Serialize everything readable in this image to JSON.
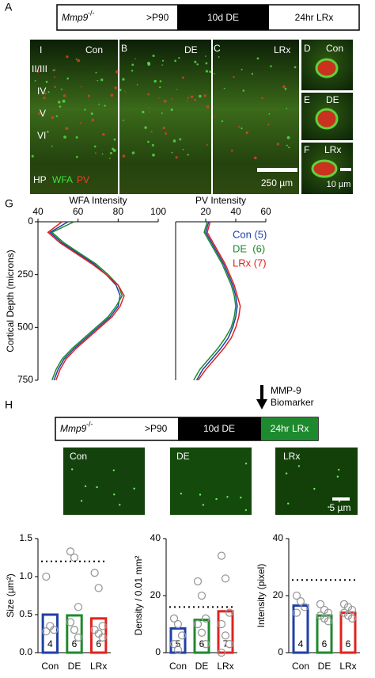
{
  "panel_a": {
    "label": "A",
    "gene": "Mmp9",
    "genotype": "-/-",
    "stages": [
      ">P90",
      "10d DE",
      "24hr LRx"
    ]
  },
  "micrographs": {
    "labels": [
      "B",
      "C",
      "D",
      "E",
      "F"
    ],
    "conditions": [
      "Con",
      "DE",
      "LRx"
    ],
    "layers": [
      "I",
      "II/III",
      "IV",
      "V",
      "VI",
      "HP"
    ],
    "stains": [
      "WFA",
      "PV"
    ],
    "scale_bars": [
      "250 µm",
      "10 µm"
    ]
  },
  "panel_g": {
    "label": "G"
  },
  "panel_h": {
    "label": "H",
    "marker": "MMP-9",
    "marker_note": "Biomarker",
    "gene": "Mmp9",
    "genotype": "-/-",
    "stages": [
      ">P90",
      "10d DE",
      "24hr LRx"
    ],
    "conditions": [
      "Con",
      "DE",
      "LRx"
    ],
    "scale_bar": "5 µm"
  },
  "chart_data": [
    {
      "type": "line",
      "title": "WFA Intensity",
      "ylabel": "Cortical Depth (microns)",
      "xlim": [
        40,
        100
      ],
      "xticks": [
        40,
        60,
        80,
        100
      ],
      "ylim": [
        750,
        0
      ],
      "yticks": [
        0,
        250,
        500,
        750
      ],
      "y": [
        0,
        50,
        100,
        150,
        200,
        250,
        300,
        350,
        400,
        450,
        500,
        550,
        600,
        650,
        700,
        750
      ],
      "series": [
        {
          "color": "#1f3fa8",
          "values": [
            55,
            46,
            52,
            60,
            68,
            74,
            79,
            81,
            80,
            76,
            70,
            64,
            58,
            53,
            50,
            48
          ]
        },
        {
          "color": "#1e8a2e",
          "values": [
            58,
            47,
            53,
            61,
            69,
            75,
            80,
            82,
            79,
            75,
            69,
            63,
            57,
            52,
            49,
            47
          ]
        },
        {
          "color": "#e0231e",
          "values": [
            52,
            45,
            51,
            59,
            67,
            74,
            80,
            83,
            81,
            77,
            71,
            65,
            59,
            54,
            51,
            49
          ]
        }
      ]
    },
    {
      "type": "line",
      "title": "PV Intensity",
      "xlim": [
        0,
        60
      ],
      "xticks": [
        20,
        40,
        60
      ],
      "ylim": [
        750,
        0
      ],
      "y": [
        0,
        50,
        100,
        150,
        200,
        250,
        300,
        350,
        400,
        450,
        500,
        550,
        600,
        650,
        700,
        750
      ],
      "series": [
        {
          "name": "Con (5)",
          "color": "#1f3fa8",
          "values": [
            22,
            20,
            24,
            28,
            32,
            35,
            38,
            40,
            41,
            40,
            38,
            35,
            30,
            24,
            18,
            14
          ]
        },
        {
          "name": "DE  (6)",
          "color": "#1e8a2e",
          "values": [
            21,
            19,
            23,
            27,
            31,
            34,
            37,
            39,
            40,
            39,
            37,
            33,
            28,
            22,
            16,
            12
          ]
        },
        {
          "name": "LRx (7)",
          "color": "#e0231e",
          "values": [
            23,
            21,
            25,
            29,
            33,
            36,
            39,
            41,
            43,
            42,
            40,
            37,
            32,
            26,
            20,
            15
          ]
        }
      ]
    },
    {
      "type": "bar",
      "ylabel": "Size (µm²)",
      "categories": [
        "Con",
        "DE",
        "LRx"
      ],
      "colors": [
        "#1f3fa8",
        "#1e8a2e",
        "#e0231e"
      ],
      "ylim": [
        0,
        1.5
      ],
      "yticks": [
        {
          "value": 0,
          "label": "0.0"
        },
        0.5,
        {
          "value": 1,
          "label": "1.0"
        },
        1.5
      ],
      "values": [
        0.5,
        0.49,
        0.45
      ],
      "n": [
        4,
        6,
        6
      ],
      "reference": 1.2,
      "points": [
        [
          1.0,
          0.35,
          0.3,
          0.28
        ],
        [
          1.33,
          1.25,
          0.6,
          0.4,
          0.3,
          0.2
        ],
        [
          1.05,
          0.85,
          0.35,
          0.3,
          0.25,
          0.2
        ]
      ]
    },
    {
      "type": "bar",
      "ylabel": "Density / 0.01 mm²",
      "categories": [
        "Con",
        "DE",
        "LRx"
      ],
      "colors": [
        "#1f3fa8",
        "#1e8a2e",
        "#e0231e"
      ],
      "ylim": [
        0,
        40
      ],
      "yticks": [
        0,
        20,
        40
      ],
      "values": [
        8.5,
        11.5,
        14.5
      ],
      "n": [
        5,
        6,
        7
      ],
      "reference": 16,
      "points": [
        [
          12,
          10,
          6,
          3,
          1
        ],
        [
          25,
          20,
          12,
          10,
          7,
          3
        ],
        [
          34,
          26,
          14,
          10,
          6,
          3,
          0
        ]
      ]
    },
    {
      "type": "bar",
      "ylabel": "Intensity (pixel)",
      "categories": [
        "Con",
        "DE",
        "LRx"
      ],
      "colors": [
        "#1f3fa8",
        "#1e8a2e",
        "#e0231e"
      ],
      "ylim": [
        0,
        40
      ],
      "yticks": [
        0,
        20,
        40
      ],
      "values": [
        16.5,
        13,
        14
      ],
      "n": [
        4,
        6,
        6
      ],
      "reference": 25.5,
      "points": [
        [
          20,
          18,
          16,
          14
        ],
        [
          17,
          15,
          14,
          13,
          12,
          11
        ],
        [
          17,
          16,
          15,
          14,
          13,
          12
        ]
      ]
    }
  ]
}
